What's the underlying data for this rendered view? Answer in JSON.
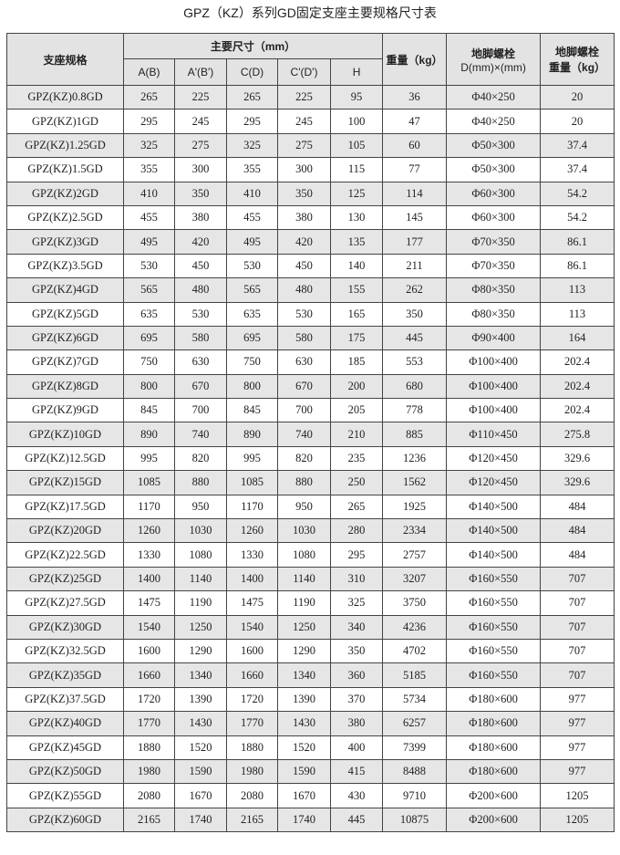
{
  "title": "GPZ（KZ）系列GD固定支座主要规格尺寸表",
  "headers": {
    "spec": "支座规格",
    "main_dims": "主要尺寸（mm）",
    "sub": [
      "A(B)",
      "A'(B')",
      "C(D)",
      "C'(D')",
      "H"
    ],
    "weight": "重量（kg）",
    "bolt_line1": "地脚螺栓",
    "bolt_line2": "D(mm)×(mm)",
    "bolt_weight_line1": "地脚螺栓",
    "bolt_weight_line2": "重量（kg）"
  },
  "rows": [
    [
      "GPZ(KZ)0.8GD",
      "265",
      "225",
      "265",
      "225",
      "95",
      "36",
      "Φ40×250",
      "20"
    ],
    [
      "GPZ(KZ)1GD",
      "295",
      "245",
      "295",
      "245",
      "100",
      "47",
      "Φ40×250",
      "20"
    ],
    [
      "GPZ(KZ)1.25GD",
      "325",
      "275",
      "325",
      "275",
      "105",
      "60",
      "Φ50×300",
      "37.4"
    ],
    [
      "GPZ(KZ)1.5GD",
      "355",
      "300",
      "355",
      "300",
      "115",
      "77",
      "Φ50×300",
      "37.4"
    ],
    [
      "GPZ(KZ)2GD",
      "410",
      "350",
      "410",
      "350",
      "125",
      "114",
      "Φ60×300",
      "54.2"
    ],
    [
      "GPZ(KZ)2.5GD",
      "455",
      "380",
      "455",
      "380",
      "130",
      "145",
      "Φ60×300",
      "54.2"
    ],
    [
      "GPZ(KZ)3GD",
      "495",
      "420",
      "495",
      "420",
      "135",
      "177",
      "Φ70×350",
      "86.1"
    ],
    [
      "GPZ(KZ)3.5GD",
      "530",
      "450",
      "530",
      "450",
      "140",
      "211",
      "Φ70×350",
      "86.1"
    ],
    [
      "GPZ(KZ)4GD",
      "565",
      "480",
      "565",
      "480",
      "155",
      "262",
      "Φ80×350",
      "113"
    ],
    [
      "GPZ(KZ)5GD",
      "635",
      "530",
      "635",
      "530",
      "165",
      "350",
      "Φ80×350",
      "113"
    ],
    [
      "GPZ(KZ)6GD",
      "695",
      "580",
      "695",
      "580",
      "175",
      "445",
      "Φ90×400",
      "164"
    ],
    [
      "GPZ(KZ)7GD",
      "750",
      "630",
      "750",
      "630",
      "185",
      "553",
      "Φ100×400",
      "202.4"
    ],
    [
      "GPZ(KZ)8GD",
      "800",
      "670",
      "800",
      "670",
      "200",
      "680",
      "Φ100×400",
      "202.4"
    ],
    [
      "GPZ(KZ)9GD",
      "845",
      "700",
      "845",
      "700",
      "205",
      "778",
      "Φ100×400",
      "202.4"
    ],
    [
      "GPZ(KZ)10GD",
      "890",
      "740",
      "890",
      "740",
      "210",
      "885",
      "Φ110×450",
      "275.8"
    ],
    [
      "GPZ(KZ)12.5GD",
      "995",
      "820",
      "995",
      "820",
      "235",
      "1236",
      "Φ120×450",
      "329.6"
    ],
    [
      "GPZ(KZ)15GD",
      "1085",
      "880",
      "1085",
      "880",
      "250",
      "1562",
      "Φ120×450",
      "329.6"
    ],
    [
      "GPZ(KZ)17.5GD",
      "1170",
      "950",
      "1170",
      "950",
      "265",
      "1925",
      "Φ140×500",
      "484"
    ],
    [
      "GPZ(KZ)20GD",
      "1260",
      "1030",
      "1260",
      "1030",
      "280",
      "2334",
      "Φ140×500",
      "484"
    ],
    [
      "GPZ(KZ)22.5GD",
      "1330",
      "1080",
      "1330",
      "1080",
      "295",
      "2757",
      "Φ140×500",
      "484"
    ],
    [
      "GPZ(KZ)25GD",
      "1400",
      "1140",
      "1400",
      "1140",
      "310",
      "3207",
      "Φ160×550",
      "707"
    ],
    [
      "GPZ(KZ)27.5GD",
      "1475",
      "1190",
      "1475",
      "1190",
      "325",
      "3750",
      "Φ160×550",
      "707"
    ],
    [
      "GPZ(KZ)30GD",
      "1540",
      "1250",
      "1540",
      "1250",
      "340",
      "4236",
      "Φ160×550",
      "707"
    ],
    [
      "GPZ(KZ)32.5GD",
      "1600",
      "1290",
      "1600",
      "1290",
      "350",
      "4702",
      "Φ160×550",
      "707"
    ],
    [
      "GPZ(KZ)35GD",
      "1660",
      "1340",
      "1660",
      "1340",
      "360",
      "5185",
      "Φ160×550",
      "707"
    ],
    [
      "GPZ(KZ)37.5GD",
      "1720",
      "1390",
      "1720",
      "1390",
      "370",
      "5734",
      "Φ180×600",
      "977"
    ],
    [
      "GPZ(KZ)40GD",
      "1770",
      "1430",
      "1770",
      "1430",
      "380",
      "6257",
      "Φ180×600",
      "977"
    ],
    [
      "GPZ(KZ)45GD",
      "1880",
      "1520",
      "1880",
      "1520",
      "400",
      "7399",
      "Φ180×600",
      "977"
    ],
    [
      "GPZ(KZ)50GD",
      "1980",
      "1590",
      "1980",
      "1590",
      "415",
      "8488",
      "Φ180×600",
      "977"
    ],
    [
      "GPZ(KZ)55GD",
      "2080",
      "1670",
      "2080",
      "1670",
      "430",
      "9710",
      "Φ200×600",
      "1205"
    ],
    [
      "GPZ(KZ)60GD",
      "2165",
      "1740",
      "2165",
      "1740",
      "445",
      "10875",
      "Φ200×600",
      "1205"
    ]
  ],
  "colors": {
    "header_bg": "#e3e3e3",
    "alt_row_bg": "#e6e6e6",
    "border": "#444444"
  }
}
